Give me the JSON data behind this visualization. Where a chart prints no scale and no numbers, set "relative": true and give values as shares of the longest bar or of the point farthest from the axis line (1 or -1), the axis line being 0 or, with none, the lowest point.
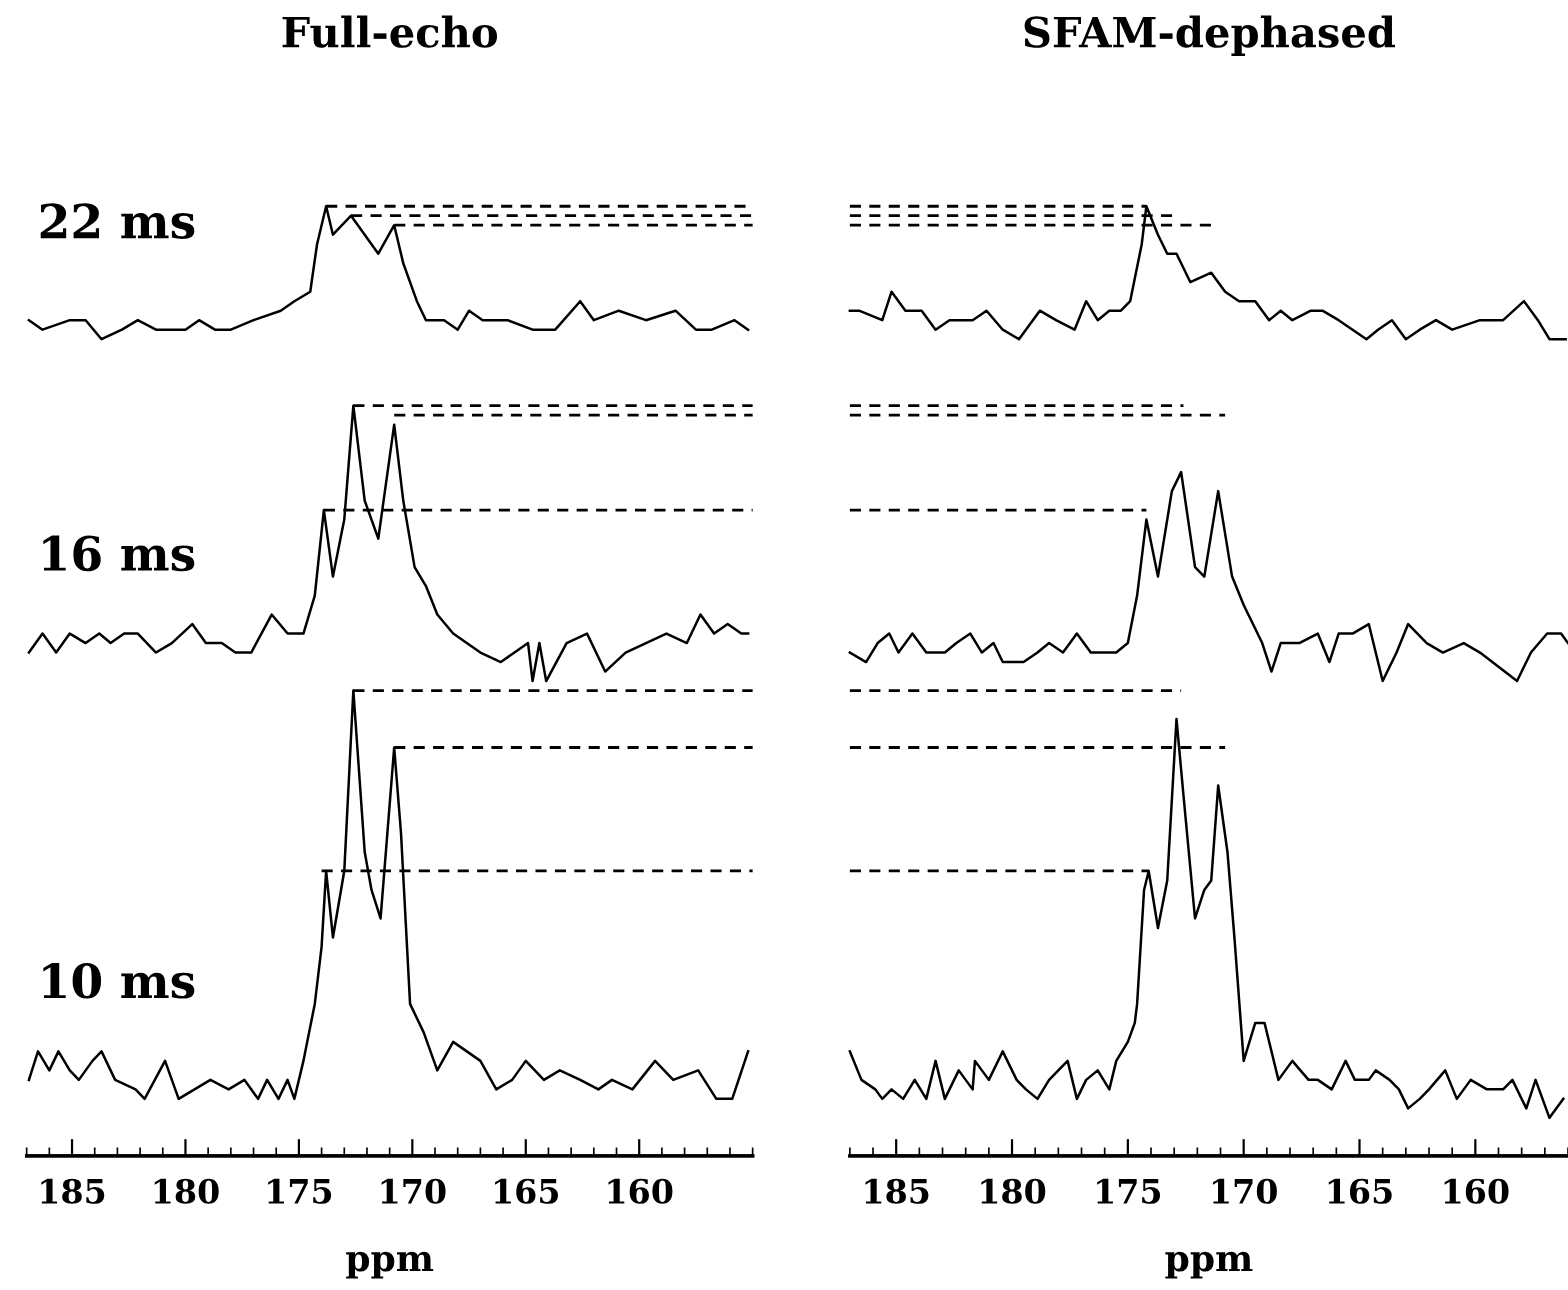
{
  "chart_data": [
    {
      "type": "line",
      "title": "Full-echo",
      "xlabel": "ppm",
      "xlim": [
        187,
        155
      ],
      "xticks": [
        185,
        180,
        175,
        170,
        165,
        160
      ],
      "relative": true,
      "grid": false,
      "legend": false,
      "marker": "none",
      "line_style": "solid",
      "series": [
        {
          "name": "22 ms",
          "color": "#000000",
          "x": [
            186.9,
            186.3,
            185.1,
            184.4,
            183.7,
            182.8,
            182.1,
            181.3,
            180.6,
            180.0,
            179.4,
            178.7,
            178.0,
            177.0,
            175.8,
            175.2,
            174.5,
            174.2,
            173.8,
            173.5,
            172.7,
            172.1,
            171.5,
            170.8,
            170.4,
            169.8,
            169.4,
            168.6,
            168.0,
            167.5,
            166.9,
            165.8,
            164.7,
            163.7,
            162.6,
            162.0,
            160.9,
            159.7,
            158.4,
            157.5,
            156.8,
            155.8,
            155.2
          ],
          "values": [
            0.88,
            0.87,
            0.88,
            0.88,
            0.86,
            0.87,
            0.88,
            0.87,
            0.87,
            0.87,
            0.88,
            0.87,
            0.87,
            0.88,
            0.89,
            0.9,
            0.91,
            0.96,
            1.0,
            0.97,
            0.99,
            0.97,
            0.95,
            0.98,
            0.94,
            0.9,
            0.88,
            0.88,
            0.87,
            0.89,
            0.88,
            0.88,
            0.87,
            0.87,
            0.9,
            0.88,
            0.89,
            0.88,
            0.89,
            0.87,
            0.87,
            0.88,
            0.87
          ]
        },
        {
          "name": "16 ms",
          "color": "#000000",
          "x": [
            186.9,
            186.3,
            185.7,
            185.1,
            184.4,
            183.8,
            183.3,
            182.7,
            182.1,
            181.3,
            180.6,
            179.7,
            179.1,
            178.4,
            177.8,
            177.1,
            176.2,
            175.5,
            174.8,
            174.3,
            173.9,
            173.5,
            173.0,
            172.6,
            172.1,
            171.5,
            170.8,
            170.4,
            169.9,
            169.4,
            168.9,
            168.2,
            167.0,
            166.1,
            164.9,
            164.7,
            164.4,
            164.1,
            163.2,
            162.3,
            161.5,
            160.6,
            159.7,
            158.8,
            157.9,
            157.3,
            156.7,
            156.1,
            155.5,
            155.2
          ],
          "values": [
            0.53,
            0.55,
            0.53,
            0.55,
            0.54,
            0.55,
            0.54,
            0.55,
            0.55,
            0.53,
            0.54,
            0.56,
            0.54,
            0.54,
            0.53,
            0.53,
            0.57,
            0.55,
            0.55,
            0.59,
            0.68,
            0.61,
            0.67,
            0.79,
            0.69,
            0.65,
            0.77,
            0.69,
            0.62,
            0.6,
            0.57,
            0.55,
            0.53,
            0.52,
            0.54,
            0.5,
            0.54,
            0.5,
            0.54,
            0.55,
            0.51,
            0.53,
            0.54,
            0.55,
            0.54,
            0.57,
            0.55,
            0.56,
            0.55,
            0.55
          ]
        },
        {
          "name": "10 ms",
          "color": "#000000",
          "x": [
            186.9,
            186.5,
            186.0,
            185.6,
            185.1,
            184.7,
            184.1,
            183.7,
            183.1,
            182.2,
            181.8,
            180.9,
            180.3,
            179.6,
            178.9,
            178.1,
            177.4,
            176.8,
            176.4,
            175.9,
            175.5,
            175.2,
            174.8,
            174.3,
            174.0,
            173.8,
            173.5,
            173.0,
            172.6,
            172.1,
            171.8,
            171.4,
            170.8,
            170.5,
            170.1,
            169.5,
            168.9,
            168.2,
            167.6,
            167.0,
            166.3,
            165.6,
            165.0,
            164.2,
            163.5,
            162.6,
            161.8,
            161.2,
            160.3,
            159.3,
            158.5,
            157.4,
            156.6,
            155.9,
            155.2
          ],
          "values": [
            0.08,
            0.11,
            0.09,
            0.11,
            0.09,
            0.08,
            0.1,
            0.11,
            0.08,
            0.07,
            0.06,
            0.1,
            0.06,
            0.07,
            0.08,
            0.07,
            0.08,
            0.06,
            0.08,
            0.06,
            0.08,
            0.06,
            0.1,
            0.16,
            0.22,
            0.3,
            0.23,
            0.3,
            0.49,
            0.32,
            0.28,
            0.25,
            0.43,
            0.34,
            0.16,
            0.13,
            0.09,
            0.12,
            0.11,
            0.1,
            0.07,
            0.08,
            0.1,
            0.08,
            0.09,
            0.08,
            0.07,
            0.08,
            0.07,
            0.1,
            0.08,
            0.09,
            0.06,
            0.06,
            0.11
          ]
        },
        {
          "color": "#000000",
          "line_style": "dashed",
          "x": [
            173.8,
            155
          ],
          "values": [
            1.0,
            1.0
          ]
        },
        {
          "color": "#000000",
          "line_style": "dashed",
          "x": [
            172.7,
            155
          ],
          "values": [
            0.99,
            0.99
          ]
        },
        {
          "color": "#000000",
          "line_style": "dashed",
          "x": [
            170.8,
            155
          ],
          "values": [
            0.98,
            0.98
          ]
        },
        {
          "color": "#000000",
          "line_style": "dashed",
          "x": [
            172.6,
            155
          ],
          "values": [
            0.79,
            0.79
          ]
        },
        {
          "color": "#000000",
          "line_style": "dashed",
          "x": [
            170.8,
            155
          ],
          "values": [
            0.78,
            0.78
          ]
        },
        {
          "color": "#000000",
          "line_style": "dashed",
          "x": [
            173.9,
            155
          ],
          "values": [
            0.68,
            0.68
          ]
        },
        {
          "color": "#000000",
          "line_style": "dashed",
          "x": [
            172.6,
            155
          ],
          "values": [
            0.49,
            0.49
          ]
        },
        {
          "color": "#000000",
          "line_style": "dashed",
          "x": [
            170.8,
            155
          ],
          "values": [
            0.43,
            0.43
          ]
        },
        {
          "color": "#000000",
          "line_style": "dashed",
          "x": [
            174.0,
            155
          ],
          "values": [
            0.3,
            0.3
          ]
        }
      ]
    },
    {
      "type": "line",
      "title": "SFAM-dephased",
      "xlabel": "ppm",
      "xlim": [
        187,
        156
      ],
      "xticks": [
        185,
        180,
        175,
        170,
        165,
        160
      ],
      "relative": true,
      "grid": false,
      "legend": false,
      "marker": "none",
      "line_style": "solid",
      "series": [
        {
          "color": "#000000",
          "x": [
            187.0,
            186.6,
            185.6,
            185.2,
            184.6,
            183.9,
            183.3,
            182.7,
            182.1,
            181.7,
            181.1,
            180.4,
            179.7,
            178.8,
            178.1,
            177.3,
            176.8,
            176.3,
            175.8,
            175.3,
            174.9,
            174.4,
            174.2,
            173.7,
            173.3,
            172.9,
            172.3,
            171.4,
            170.8,
            170.2,
            169.5,
            168.9,
            168.4,
            167.9,
            167.1,
            166.6,
            165.9,
            164.7,
            164.2,
            163.6,
            163.0,
            162.4,
            161.7,
            161.0,
            159.8,
            158.8,
            157.9,
            157.3,
            156.8,
            156.1
          ],
          "values": [
            0.89,
            0.89,
            0.88,
            0.91,
            0.89,
            0.89,
            0.87,
            0.88,
            0.88,
            0.88,
            0.89,
            0.87,
            0.86,
            0.89,
            0.88,
            0.87,
            0.9,
            0.88,
            0.89,
            0.89,
            0.9,
            0.96,
            1.0,
            0.97,
            0.95,
            0.95,
            0.92,
            0.93,
            0.91,
            0.9,
            0.9,
            0.88,
            0.89,
            0.88,
            0.89,
            0.89,
            0.88,
            0.86,
            0.87,
            0.88,
            0.86,
            0.87,
            0.88,
            0.87,
            0.88,
            0.88,
            0.9,
            0.88,
            0.86,
            0.86
          ]
        },
        {
          "color": "#000000",
          "x": [
            187.0,
            186.3,
            185.8,
            185.3,
            184.9,
            184.3,
            183.7,
            182.9,
            182.4,
            181.8,
            181.3,
            180.8,
            180.4,
            179.5,
            178.9,
            178.4,
            177.8,
            177.2,
            176.6,
            176.0,
            175.5,
            175.0,
            174.6,
            174.2,
            173.7,
            173.1,
            172.7,
            172.1,
            171.7,
            171.1,
            170.5,
            170.0,
            169.2,
            168.8,
            168.4,
            167.6,
            166.8,
            166.3,
            165.9,
            165.3,
            164.6,
            164.0,
            163.4,
            162.9,
            162.1,
            161.4,
            160.5,
            159.8,
            158.2,
            157.6,
            156.9,
            156.3,
            156.0
          ],
          "values": [
            0.53,
            0.52,
            0.54,
            0.55,
            0.53,
            0.55,
            0.53,
            0.53,
            0.54,
            0.55,
            0.53,
            0.54,
            0.52,
            0.52,
            0.53,
            0.54,
            0.53,
            0.55,
            0.53,
            0.53,
            0.53,
            0.54,
            0.59,
            0.67,
            0.61,
            0.7,
            0.72,
            0.62,
            0.61,
            0.7,
            0.61,
            0.58,
            0.54,
            0.51,
            0.54,
            0.54,
            0.55,
            0.52,
            0.55,
            0.55,
            0.56,
            0.5,
            0.53,
            0.56,
            0.54,
            0.53,
            0.54,
            0.53,
            0.5,
            0.53,
            0.55,
            0.55,
            0.54
          ]
        },
        {
          "color": "#000000",
          "x": [
            187.0,
            186.5,
            185.9,
            185.6,
            185.2,
            184.7,
            184.2,
            183.7,
            183.3,
            182.9,
            182.3,
            181.7,
            181.6,
            181.0,
            180.4,
            179.8,
            179.4,
            178.9,
            178.4,
            177.6,
            177.2,
            176.8,
            176.3,
            175.8,
            175.5,
            175.0,
            174.7,
            174.6,
            174.3,
            174.1,
            173.7,
            173.3,
            172.9,
            172.6,
            172.1,
            171.7,
            171.4,
            171.1,
            170.7,
            170.4,
            170.0,
            169.5,
            169.1,
            168.5,
            167.9,
            167.2,
            166.8,
            166.2,
            165.6,
            165.2,
            164.6,
            164.3,
            163.7,
            163.3,
            162.9,
            162.4,
            162.0,
            161.3,
            160.8,
            160.2,
            159.5,
            158.8,
            158.4,
            157.8,
            157.4,
            156.8,
            156.2
          ],
          "values": [
            0.11,
            0.08,
            0.07,
            0.06,
            0.07,
            0.06,
            0.08,
            0.06,
            0.1,
            0.06,
            0.09,
            0.07,
            0.1,
            0.08,
            0.11,
            0.08,
            0.07,
            0.06,
            0.08,
            0.1,
            0.06,
            0.08,
            0.09,
            0.07,
            0.1,
            0.12,
            0.14,
            0.16,
            0.28,
            0.3,
            0.24,
            0.29,
            0.46,
            0.38,
            0.25,
            0.28,
            0.29,
            0.39,
            0.32,
            0.23,
            0.1,
            0.14,
            0.14,
            0.08,
            0.1,
            0.08,
            0.08,
            0.07,
            0.1,
            0.08,
            0.08,
            0.09,
            0.08,
            0.07,
            0.05,
            0.06,
            0.07,
            0.09,
            0.06,
            0.08,
            0.07,
            0.07,
            0.08,
            0.05,
            0.08,
            0.04,
            0.06
          ]
        },
        {
          "color": "#000000",
          "line_style": "dashed",
          "x": [
            187,
            174.2
          ],
          "values": [
            1.0,
            1.0
          ]
        },
        {
          "color": "#000000",
          "line_style": "dashed",
          "x": [
            187,
            172.9
          ],
          "values": [
            0.99,
            0.99
          ]
        },
        {
          "color": "#000000",
          "line_style": "dashed",
          "x": [
            187,
            171.3
          ],
          "values": [
            0.98,
            0.98
          ]
        },
        {
          "color": "#000000",
          "line_style": "dashed",
          "x": [
            187,
            172.6
          ],
          "values": [
            0.79,
            0.79
          ]
        },
        {
          "color": "#000000",
          "line_style": "dashed",
          "x": [
            187,
            170.8
          ],
          "values": [
            0.78,
            0.78
          ]
        },
        {
          "color": "#000000",
          "line_style": "dashed",
          "x": [
            187,
            174.2
          ],
          "values": [
            0.68,
            0.68
          ]
        },
        {
          "color": "#000000",
          "line_style": "dashed",
          "x": [
            187,
            172.7
          ],
          "values": [
            0.49,
            0.49
          ]
        },
        {
          "color": "#000000",
          "line_style": "dashed",
          "x": [
            187,
            170.8
          ],
          "values": [
            0.43,
            0.43
          ]
        },
        {
          "color": "#000000",
          "line_style": "dashed",
          "x": [
            187,
            174.1
          ],
          "values": [
            0.3,
            0.3
          ]
        }
      ]
    }
  ]
}
